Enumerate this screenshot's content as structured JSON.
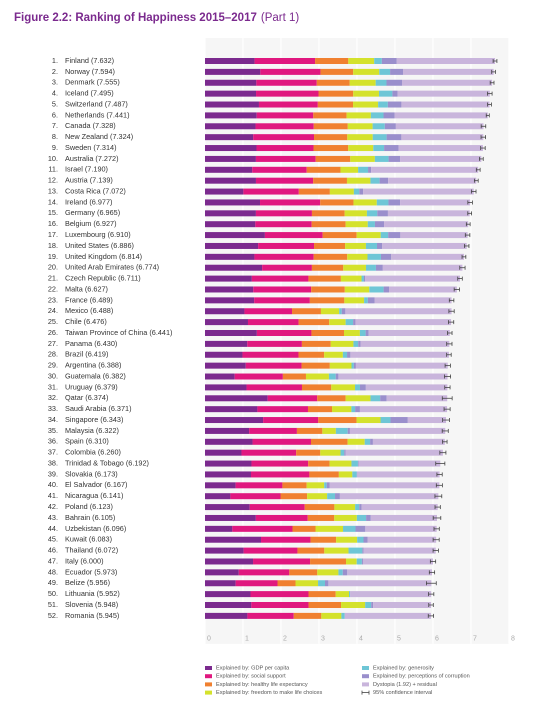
{
  "chart_data": {
    "type": "bar",
    "orientation": "horizontal",
    "stacked": true,
    "title": "Figure 2.2: Ranking of Happiness 2015–2017",
    "title_part": "(Part 1)",
    "title_color": "#7b2a8e",
    "ranks": [
      "1.",
      "2.",
      "3.",
      "4.",
      "5.",
      "6.",
      "7.",
      "8.",
      "9.",
      "10.",
      "11.",
      "12.",
      "13.",
      "14.",
      "15.",
      "16.",
      "17.",
      "18.",
      "19.",
      "20.",
      "21.",
      "22.",
      "23.",
      "24.",
      "25.",
      "26.",
      "27.",
      "28.",
      "29.",
      "30.",
      "31.",
      "32.",
      "33.",
      "34.",
      "35.",
      "36.",
      "37.",
      "38.",
      "39.",
      "40.",
      "41.",
      "42.",
      "43.",
      "44.",
      "45.",
      "46.",
      "47.",
      "48.",
      "49.",
      "50.",
      "51.",
      "52."
    ],
    "categories": [
      "Finland (7.632)",
      "Norway (7.594)",
      "Denmark (7.555)",
      "Iceland (7.495)",
      "Switzerland (7.487)",
      "Netherlands (7.441)",
      "Canada (7.328)",
      "New Zealand (7.324)",
      "Sweden (7.314)",
      "Australia (7.272)",
      "Israel (7.190)",
      "Austria (7.139)",
      "Costa Rica (7.072)",
      "Ireland (6.977)",
      "Germany (6.965)",
      "Belgium (6.927)",
      "Luxembourg (6.910)",
      "United States (6.886)",
      "United Kingdom (6.814)",
      "United Arab Emirates (6.774)",
      "Czech Republic (6.711)",
      "Malta (6.627)",
      "France (6.489)",
      "Mexico (6.488)",
      "Chile (6.476)",
      "Taiwan Province of China (6.441)",
      "Panama (6.430)",
      "Brazil (6.419)",
      "Argentina (6.388)",
      "Guatemala (6.382)",
      "Uruguay (6.379)",
      "Qatar (6.374)",
      "Saudi Arabia (6.371)",
      "Singapore (6.343)",
      "Malaysia (6.322)",
      "Spain (6.310)",
      "Colombia (6.260)",
      "Trinidad & Tobago (6.192)",
      "Slovakia (6.173)",
      "El Salvador (6.167)",
      "Nicaragua (6.141)",
      "Poland (6.123)",
      "Bahrain (6.105)",
      "Uzbekistan (6.096)",
      "Kuwait (6.083)",
      "Thailand (6.072)",
      "Italy (6.000)",
      "Ecuador (5.973)",
      "Belize (5.956)",
      "Lithuania (5.952)",
      "Slovenia (5.948)",
      "Romania (5.945)"
    ],
    "series": [
      {
        "name": "Explained by: GDP per capita",
        "color": "#7b2a8e",
        "values": [
          1.305,
          1.456,
          1.351,
          1.343,
          1.42,
          1.361,
          1.33,
          1.268,
          1.355,
          1.34,
          1.244,
          1.341,
          1.01,
          1.448,
          1.34,
          1.324,
          1.576,
          1.398,
          1.301,
          1.503,
          1.233,
          1.27,
          1.293,
          1.038,
          1.131,
          1.365,
          1.112,
          0.986,
          1.073,
          0.781,
          1.093,
          1.649,
          1.379,
          1.529,
          1.161,
          1.251,
          0.96,
          1.223,
          1.21,
          0.806,
          0.668,
          1.176,
          1.338,
          0.719,
          1.474,
          1.016,
          1.264,
          0.889,
          0.807,
          1.197,
          1.219,
          1.116
        ]
      },
      {
        "name": "Explained by: social support",
        "color": "#e0187f",
        "values": [
          1.592,
          1.582,
          1.59,
          1.644,
          1.549,
          1.488,
          1.532,
          1.601,
          1.501,
          1.573,
          1.433,
          1.504,
          1.459,
          1.583,
          1.474,
          1.483,
          1.52,
          1.471,
          1.559,
          1.31,
          1.489,
          1.525,
          1.466,
          1.252,
          1.331,
          1.436,
          1.438,
          1.474,
          1.468,
          1.268,
          1.459,
          1.303,
          1.331,
          1.451,
          1.258,
          1.538,
          1.439,
          1.492,
          1.537,
          1.231,
          1.319,
          1.448,
          1.366,
          1.584,
          1.301,
          1.417,
          1.501,
          1.33,
          1.101,
          1.527,
          1.506,
          1.219
        ]
      },
      {
        "name": "Explained by: healthy life expectancy",
        "color": "#f08030",
        "values": [
          0.874,
          0.861,
          0.868,
          0.914,
          0.927,
          0.878,
          0.896,
          0.876,
          0.913,
          0.91,
          0.888,
          0.891,
          0.817,
          0.876,
          0.861,
          0.894,
          0.896,
          0.819,
          0.883,
          0.825,
          0.854,
          0.884,
          0.908,
          0.761,
          0.808,
          0.857,
          0.759,
          0.675,
          0.744,
          0.608,
          0.771,
          0.748,
          0.633,
          1.008,
          0.669,
          0.965,
          0.635,
          0.564,
          0.776,
          0.639,
          0.7,
          0.781,
          0.698,
          0.605,
          0.675,
          0.707,
          0.946,
          0.736,
          0.474,
          0.716,
          0.856,
          0.726
        ]
      },
      {
        "name": "Explained by: freedom to make life choices",
        "color": "#d4e22c",
        "values": [
          0.681,
          0.686,
          0.683,
          0.677,
          0.66,
          0.638,
          0.653,
          0.669,
          0.659,
          0.647,
          0.464,
          0.617,
          0.632,
          0.614,
          0.586,
          0.583,
          0.632,
          0.547,
          0.533,
          0.598,
          0.543,
          0.645,
          0.52,
          0.479,
          0.431,
          0.418,
          0.597,
          0.493,
          0.57,
          0.604,
          0.625,
          0.654,
          0.509,
          0.631,
          0.356,
          0.449,
          0.531,
          0.575,
          0.354,
          0.461,
          0.527,
          0.546,
          0.594,
          0.724,
          0.554,
          0.637,
          0.281,
          0.556,
          0.593,
          0.35,
          0.633,
          0.528
        ]
      },
      {
        "name": "Explained by: generosity",
        "color": "#6ec6d6",
        "values": [
          0.202,
          0.286,
          0.284,
          0.353,
          0.256,
          0.333,
          0.321,
          0.365,
          0.285,
          0.361,
          0.262,
          0.242,
          0.143,
          0.307,
          0.273,
          0.188,
          0.196,
          0.291,
          0.354,
          0.262,
          0.064,
          0.376,
          0.098,
          0.069,
          0.197,
          0.151,
          0.125,
          0.11,
          0.062,
          0.179,
          0.13,
          0.256,
          0.098,
          0.261,
          0.311,
          0.142,
          0.099,
          0.171,
          0.118,
          0.065,
          0.208,
          0.108,
          0.243,
          0.328,
          0.167,
          0.364,
          0.137,
          0.114,
          0.183,
          0.026,
          0.16,
          0.088
        ]
      },
      {
        "name": "Explained by: perceptions of corruption",
        "color": "#9a8fcc",
        "values": [
          0.393,
          0.34,
          0.408,
          0.138,
          0.357,
          0.295,
          0.291,
          0.389,
          0.383,
          0.302,
          0.082,
          0.224,
          0.101,
          0.306,
          0.28,
          0.24,
          0.321,
          0.133,
          0.272,
          0.182,
          0.034,
          0.142,
          0.176,
          0.095,
          0.061,
          0.078,
          0.063,
          0.088,
          0.054,
          0.071,
          0.155,
          0.171,
          0.127,
          0.457,
          0.059,
          0.074,
          0.039,
          0.019,
          0.014,
          0.082,
          0.128,
          0.064,
          0.123,
          0.259,
          0.106,
          0.029,
          0.028,
          0.12,
          0.089,
          0.006,
          0.051,
          0.001
        ]
      },
      {
        "name": "Dystopia (1.92) + residual",
        "color": "#c9b5dc",
        "values": [
          2.585,
          2.383,
          2.371,
          2.426,
          2.318,
          2.448,
          2.305,
          2.156,
          2.218,
          2.139,
          2.817,
          2.32,
          2.91,
          1.843,
          2.151,
          2.215,
          1.769,
          2.227,
          1.912,
          2.094,
          2.494,
          1.785,
          2.028,
          2.794,
          2.517,
          2.136,
          2.336,
          2.593,
          2.417,
          2.871,
          2.146,
          1.593,
          2.294,
          1.006,
          2.508,
          1.891,
          2.557,
          2.148,
          2.164,
          2.883,
          2.591,
          2,
          1.743,
          1.877,
          1.806,
          1.902,
          1.843,
          2.228,
          2.709,
          2.13,
          1.523,
          2.267
        ]
      }
    ],
    "errors": [
      0.05,
      0.05,
      0.05,
      0.06,
      0.05,
      0.04,
      0.06,
      0.06,
      0.06,
      0.05,
      0.05,
      0.05,
      0.06,
      0.06,
      0.05,
      0.05,
      0.06,
      0.06,
      0.05,
      0.07,
      0.06,
      0.07,
      0.06,
      0.07,
      0.07,
      0.06,
      0.07,
      0.06,
      0.07,
      0.08,
      0.07,
      0.13,
      0.08,
      0.09,
      0.08,
      0.06,
      0.08,
      0.12,
      0.07,
      0.08,
      0.09,
      0.07,
      0.1,
      0.07,
      0.08,
      0.07,
      0.07,
      0.07,
      0.13,
      0.07,
      0.06,
      0.07
    ],
    "ci_label": "95% confidence interval",
    "xlim": [
      0,
      8
    ],
    "xticks": [
      0,
      1,
      2,
      3,
      4,
      5,
      6,
      7,
      8
    ],
    "grid": true
  }
}
